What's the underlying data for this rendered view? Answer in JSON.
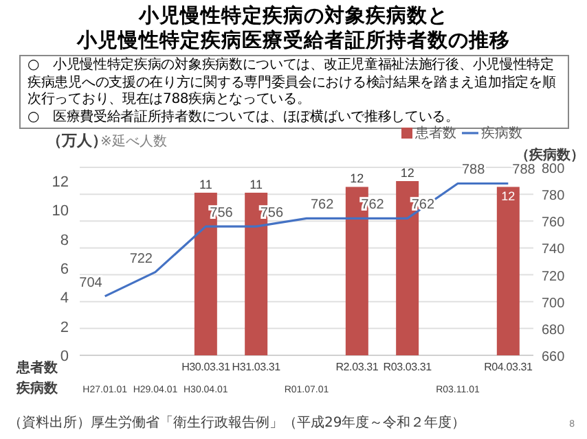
{
  "chart_data": {
    "type": "bar",
    "title": "小児慢性特定疾病の対象疾病数と",
    "subtitle": "小児慢性特定疾病医療受給者証所持者数の推移",
    "categories": [
      "\nH27.01.01",
      "\nH29.04.01",
      "H30.03.31\nH30.04.01",
      "H31.03.31\n",
      "\nR01.07.01",
      "R2.03.31\n",
      "R03.03.31\n",
      "\nR03.11.01",
      "R04.03.31\n"
    ],
    "series": [
      {
        "name": "患者数",
        "color": "#c0504d",
        "values": [
          null,
          null,
          11.2,
          11.2,
          null,
          11.6,
          12.0,
          null,
          11.6
        ],
        "value_labels": [
          null,
          null,
          "11",
          "11",
          null,
          "12",
          "12",
          null,
          "12"
        ]
      },
      {
        "name": "疾病数",
        "type": "line",
        "axis": "y2",
        "color": "#4472c4",
        "values": [
          704,
          722,
          756,
          756,
          762,
          762,
          762,
          788,
          788
        ],
        "data_labels": true
      }
    ],
    "ylabel": "（万人）",
    "y2label": "（疾病数）",
    "ylim": [
      0,
      12
    ],
    "yticks": [
      0,
      2,
      4,
      6,
      8,
      10,
      12
    ],
    "y2lim": [
      660,
      800
    ],
    "y2ticks": [
      660,
      680,
      700,
      720,
      740,
      760,
      780,
      800
    ],
    "grid": "y2",
    "legend": "top right",
    "annotations": [
      "○　小児慢性特定疾病の対象疾病数については、改正児童福祉法施行後、小児慢性特定疾病患児への支援の在り方に関する専門委員会における検討結果を踏まえ追加指定を順次行っており、現在は788疾病となっている。\n○　医療費受給者証所持者数については、ほぼ横ばいで推移している。",
      "※延べ人数",
      "患者数",
      "疾病数",
      "（資料出所）厚生労働省「衛生行政報告例」（平成29年度～令和２年度）",
      "8"
    ]
  }
}
